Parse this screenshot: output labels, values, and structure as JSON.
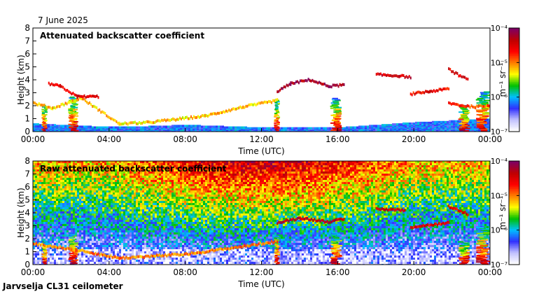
{
  "date_label": "7 June 2025",
  "footer_label": "Jarvselja CL31 ceilometer",
  "colorbar_unit": "m⁻¹ sr⁻¹",
  "colorscale": [
    "#ffffff",
    "#c0c0ff",
    "#3030ff",
    "#00c0ff",
    "#00c000",
    "#ffff00",
    "#ff8000",
    "#ff0000",
    "#c00000",
    "#800060"
  ],
  "chart_data": [
    {
      "type": "heatmap",
      "title": "Attenuated backscatter coefficient",
      "xlabel": "Time (UTC)",
      "ylabel": "Height (km)",
      "xlim": [
        0,
        24
      ],
      "ylim": [
        0,
        8
      ],
      "x_ticks": [
        "00:00",
        "04:00",
        "08:00",
        "12:00",
        "16:00",
        "20:00",
        "00:00"
      ],
      "y_ticks": [
        "0",
        "1",
        "2",
        "3",
        "4",
        "5",
        "6",
        "7",
        "8"
      ],
      "colorbar": {
        "ticks": [
          "10⁻⁷",
          "10⁻⁶",
          "10⁻⁵",
          "10⁻⁴"
        ],
        "range_log10": [
          -7,
          -4
        ]
      },
      "noise": false,
      "layers": [
        {
          "name": "surface-layer-aerosol",
          "points": [
            [
              0,
              0.5
            ],
            [
              1.5,
              0.4
            ],
            [
              3,
              0.3
            ],
            [
              5,
              0.25
            ],
            [
              8,
              0.4
            ],
            [
              12,
              0.2
            ],
            [
              16,
              0.2
            ],
            [
              20,
              0.6
            ],
            [
              23,
              0.8
            ],
            [
              24,
              0.9
            ]
          ],
          "log10": -6.2
        },
        {
          "name": "boundary-layer-top",
          "points": [
            [
              0,
              2.2
            ],
            [
              1,
              1.8
            ],
            [
              2.5,
              2.6
            ],
            [
              4.5,
              0.6
            ],
            [
              6,
              0.7
            ],
            [
              9,
              1.2
            ],
            [
              11,
              1.9
            ],
            [
              12.8,
              2.4
            ]
          ],
          "log10": -5.2
        },
        {
          "name": "cloud-layer-1",
          "points": [
            [
              0.8,
              3.7
            ],
            [
              1.4,
              3.5
            ],
            [
              2.3,
              2.7
            ],
            [
              3.4,
              2.7
            ]
          ],
          "log10": -4.5
        },
        {
          "name": "cloud-layer-2",
          "points": [
            [
              12.8,
              3.1
            ],
            [
              13.5,
              3.7
            ],
            [
              14.5,
              4.0
            ],
            [
              15.5,
              3.5
            ],
            [
              16.3,
              3.6
            ]
          ],
          "log10": -4.2
        },
        {
          "name": "cloud-layer-3",
          "points": [
            [
              18.0,
              4.4
            ],
            [
              19.2,
              4.3
            ],
            [
              19.8,
              4.2
            ]
          ],
          "log10": -4.4
        },
        {
          "name": "cloud-layer-4",
          "points": [
            [
              21.8,
              4.8
            ],
            [
              22.4,
              4.3
            ],
            [
              22.8,
              4.0
            ]
          ],
          "log10": -4.5
        },
        {
          "name": "cloud-layer-5",
          "points": [
            [
              19.8,
              2.9
            ],
            [
              20.8,
              3.1
            ],
            [
              21.8,
              3.3
            ]
          ],
          "log10": -4.6
        },
        {
          "name": "cloud-layer-6",
          "points": [
            [
              21.8,
              2.2
            ],
            [
              22.5,
              2.0
            ],
            [
              23.2,
              1.9
            ],
            [
              24,
              2.0
            ]
          ],
          "log10": -4.8
        }
      ],
      "columns": [
        {
          "t": 0.6,
          "top": 2.0,
          "w": 0.3
        },
        {
          "t": 2.1,
          "top": 2.6,
          "w": 0.5
        },
        {
          "t": 12.8,
          "top": 2.4,
          "w": 0.3
        },
        {
          "t": 15.9,
          "top": 2.5,
          "w": 0.6
        },
        {
          "t": 22.6,
          "top": 2.0,
          "w": 0.6
        },
        {
          "t": 23.6,
          "top": 3.0,
          "w": 0.7
        }
      ]
    },
    {
      "type": "heatmap",
      "title": "Raw attenuated backscatter coefficient",
      "xlabel": "Time (UTC)",
      "ylabel": "Height (km)",
      "xlim": [
        0,
        24
      ],
      "ylim": [
        0,
        8
      ],
      "x_ticks": [
        "00:00",
        "04:00",
        "08:00",
        "12:00",
        "16:00",
        "20:00",
        "00:00"
      ],
      "y_ticks": [
        "0",
        "1",
        "2",
        "3",
        "4",
        "5",
        "6",
        "7",
        "8"
      ],
      "colorbar": {
        "ticks": [
          "10⁻⁷",
          "10⁻⁶",
          "10⁻⁵",
          "10⁻⁴"
        ],
        "range_log10": [
          -7,
          -4
        ]
      },
      "noise": true,
      "layers": [
        {
          "name": "boundary-layer-top",
          "points": [
            [
              0,
              1.6
            ],
            [
              2,
              1.2
            ],
            [
              4.5,
              0.5
            ],
            [
              8,
              0.8
            ],
            [
              11,
              1.4
            ],
            [
              12.8,
              1.8
            ]
          ],
          "log10": -5.0
        },
        {
          "name": "cloud-layer-2",
          "points": [
            [
              12.8,
              3.2
            ],
            [
              14,
              3.6
            ],
            [
              15.5,
              3.3
            ],
            [
              16.3,
              3.5
            ]
          ],
          "log10": -4.3
        },
        {
          "name": "cloud-layer-3",
          "points": [
            [
              18.0,
              4.3
            ],
            [
              19.5,
              4.2
            ]
          ],
          "log10": -4.4
        },
        {
          "name": "cloud-layer-4",
          "points": [
            [
              21.8,
              4.5
            ],
            [
              22.8,
              3.9
            ]
          ],
          "log10": -4.5
        },
        {
          "name": "cloud-layer-5",
          "points": [
            [
              19.8,
              2.9
            ],
            [
              21.8,
              3.2
            ]
          ],
          "log10": -4.6
        }
      ],
      "columns": [
        {
          "t": 0.6,
          "top": 1.8,
          "w": 0.3
        },
        {
          "t": 2.1,
          "top": 2.4,
          "w": 0.5
        },
        {
          "t": 12.8,
          "top": 2.2,
          "w": 0.3
        },
        {
          "t": 15.9,
          "top": 2.4,
          "w": 0.6
        },
        {
          "t": 22.6,
          "top": 1.8,
          "w": 0.6
        },
        {
          "t": 23.6,
          "top": 2.8,
          "w": 0.7
        }
      ]
    }
  ]
}
